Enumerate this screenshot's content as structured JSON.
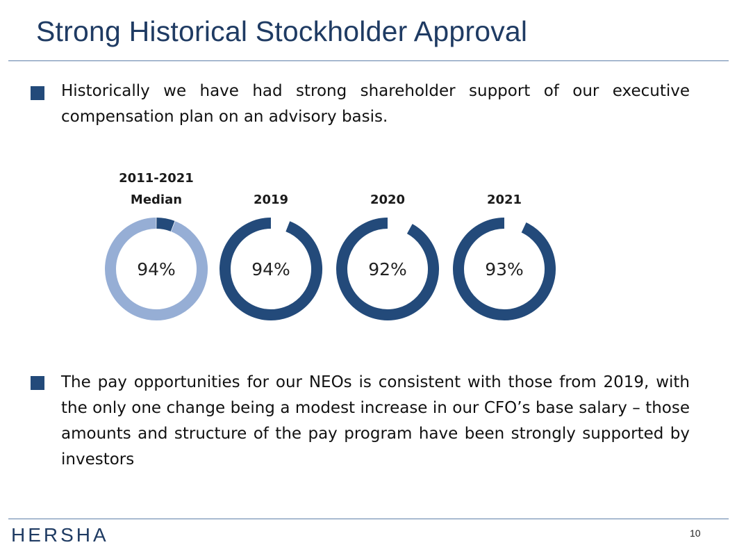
{
  "slide": {
    "title": "Strong Historical Stockholder Approval",
    "paragraph_1": "Historically we have had strong shareholder support of our executive compensation plan on an advisory basis.",
    "paragraph_2": "The pay opportunities for our NEOs is consistent with those from 2019, with the only one change being a modest increase in our CFO’s base salary – those amounts and structure of the pay program have been strongly supported by investors",
    "page_number": "10",
    "logo_text": "HERSHA",
    "bullet_icon": "square-bullet-icon"
  },
  "colors": {
    "title": "#1F3B63",
    "accent_dark": "#234A7A",
    "accent_light": "#96AED5",
    "rule": "#5E7FA8"
  },
  "chart_data": {
    "type": "pie",
    "variant": "donut",
    "title": "",
    "items": [
      {
        "label_line1": "2011-2021",
        "label_line2": "Median",
        "value": 94,
        "value_label": "94%",
        "style": "light"
      },
      {
        "label_line1": "",
        "label_line2": "2019",
        "value": 94,
        "value_label": "94%",
        "style": "dark"
      },
      {
        "label_line1": "",
        "label_line2": "2020",
        "value": 92,
        "value_label": "92%",
        "style": "dark"
      },
      {
        "label_line1": "",
        "label_line2": "2021",
        "value": 93,
        "value_label": "93%",
        "style": "dark"
      }
    ]
  }
}
